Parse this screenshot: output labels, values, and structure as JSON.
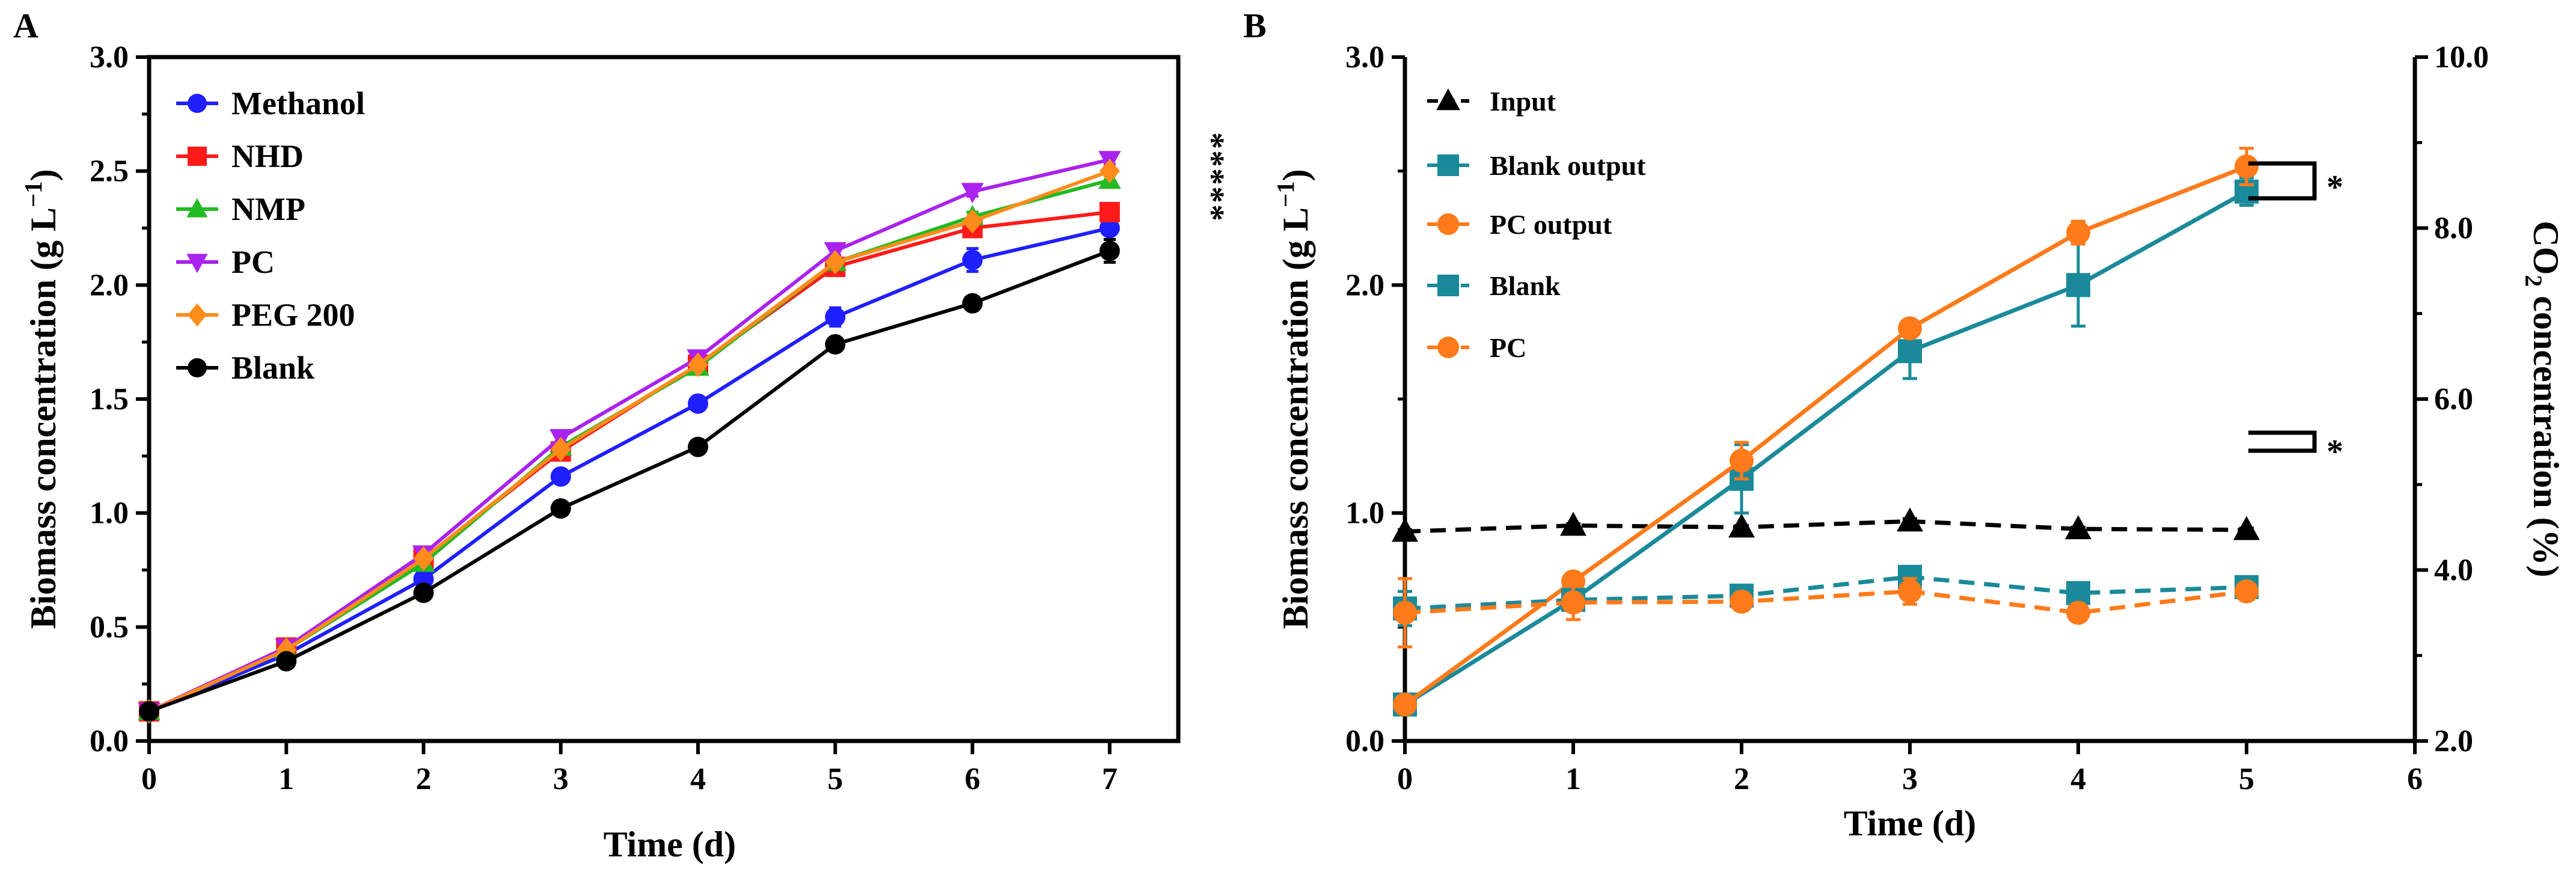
{
  "chart_data": [
    {
      "panel_label": "A",
      "type": "line",
      "xlabel": "Time (d)",
      "ylabel": {
        "main": "Biomass concentration (g L",
        "sup": "−1",
        "close": ")"
      },
      "xlim": [
        0,
        7.5
      ],
      "ylim": [
        0,
        3.0
      ],
      "xticks": [
        "0",
        "1",
        "2",
        "3",
        "4",
        "5",
        "6",
        "7"
      ],
      "yticks": [
        "0.0",
        "0.5",
        "1.0",
        "1.5",
        "2.0",
        "2.5",
        "3.0"
      ],
      "x": [
        0,
        1,
        2,
        3,
        4,
        5,
        6,
        7
      ],
      "legend_position": "top-left",
      "significance": "*****",
      "series": [
        {
          "name": "Methanol",
          "color": "#1f1fff",
          "marker": "circle",
          "values": [
            0.13,
            0.38,
            0.71,
            1.16,
            1.48,
            1.86,
            2.11,
            2.25
          ],
          "errors": [
            0.01,
            0.01,
            0.02,
            0.02,
            0.02,
            0.04,
            0.05,
            0.03
          ]
        },
        {
          "name": "NHD",
          "color": "#ff1a1a",
          "marker": "square",
          "values": [
            0.13,
            0.41,
            0.8,
            1.27,
            1.65,
            2.08,
            2.25,
            2.32
          ],
          "errors": [
            0.01,
            0.01,
            0.02,
            0.02,
            0.02,
            0.02,
            0.03,
            0.02
          ]
        },
        {
          "name": "NMP",
          "color": "#22bb22",
          "marker": "triangle-up",
          "values": [
            0.13,
            0.4,
            0.78,
            1.29,
            1.64,
            2.1,
            2.3,
            2.46
          ],
          "errors": [
            0.01,
            0.01,
            0.02,
            0.02,
            0.02,
            0.02,
            0.02,
            0.02
          ]
        },
        {
          "name": "PC",
          "color": "#aa22ee",
          "marker": "triangle-down",
          "values": [
            0.13,
            0.41,
            0.82,
            1.33,
            1.68,
            2.15,
            2.41,
            2.55
          ],
          "errors": [
            0.01,
            0.01,
            0.02,
            0.02,
            0.02,
            0.02,
            0.02,
            0.02
          ]
        },
        {
          "name": "PEG 200",
          "color": "#ff8c1a",
          "marker": "diamond",
          "values": [
            0.13,
            0.4,
            0.8,
            1.28,
            1.65,
            2.1,
            2.28,
            2.5
          ],
          "errors": [
            0.01,
            0.01,
            0.02,
            0.02,
            0.02,
            0.02,
            0.02,
            0.02
          ]
        },
        {
          "name": "Blank",
          "color": "#000000",
          "marker": "circle",
          "values": [
            0.13,
            0.35,
            0.65,
            1.02,
            1.29,
            1.74,
            1.92,
            2.15
          ],
          "errors": [
            0.01,
            0.01,
            0.02,
            0.02,
            0.02,
            0.02,
            0.02,
            0.05
          ]
        }
      ]
    },
    {
      "panel_label": "B",
      "type": "line",
      "xlabel": "Time (d)",
      "ylabel": {
        "main": "Biomass concentration (g L",
        "sup": "−1",
        "close": ")"
      },
      "y2label": {
        "pre": "CO",
        "sub": "2",
        "post": " concentration (%)"
      },
      "xlim": [
        0,
        6
      ],
      "ylim": [
        0,
        3.0
      ],
      "y2lim": [
        2.0,
        10.0
      ],
      "xticks": [
        "0",
        "1",
        "2",
        "3",
        "4",
        "5",
        "6"
      ],
      "yticks": [
        "0.0",
        "1.0",
        "2.0",
        "3.0"
      ],
      "y2ticks": [
        "2.0",
        "4.0",
        "6.0",
        "8.0",
        "10.0"
      ],
      "x": [
        0,
        1,
        2,
        3,
        4,
        5
      ],
      "legend_position": "top-left",
      "significance": [
        "*",
        "*"
      ],
      "series": [
        {
          "name": "Input",
          "color": "#000000",
          "marker": "triangle-up",
          "axis": "right",
          "dashed": true,
          "values": [
            4.45,
            4.52,
            4.5,
            4.57,
            4.48,
            4.47
          ],
          "errors": [
            0.02,
            0.02,
            0.02,
            0.03,
            0.02,
            0.02
          ]
        },
        {
          "name": "Blank output",
          "color": "#1a8a9a",
          "marker": "square",
          "axis": "left",
          "dashed": false,
          "values": [
            0.16,
            0.62,
            1.15,
            1.71,
            2.0,
            2.41
          ],
          "errors": [
            0.02,
            0.02,
            0.15,
            0.12,
            0.18,
            0.06
          ]
        },
        {
          "name": "PC output",
          "color": "#ff7a1a",
          "marker": "circle",
          "axis": "left",
          "dashed": false,
          "values": [
            0.16,
            0.7,
            1.23,
            1.81,
            2.23,
            2.52
          ],
          "errors": [
            0.02,
            0.02,
            0.08,
            0.02,
            0.05,
            0.08
          ]
        },
        {
          "name": "Blank",
          "color": "#1a8a9a",
          "marker": "square",
          "axis": "right",
          "dashed": true,
          "values": [
            3.55,
            3.65,
            3.7,
            3.92,
            3.73,
            3.8
          ],
          "errors": [
            0.2,
            0.05,
            0.05,
            0.05,
            0.05,
            0.03
          ]
        },
        {
          "name": "PC",
          "color": "#ff7a1a",
          "marker": "circle",
          "axis": "right",
          "dashed": true,
          "values": [
            3.5,
            3.62,
            3.63,
            3.75,
            3.5,
            3.75
          ],
          "errors": [
            0.4,
            0.2,
            0.1,
            0.15,
            0.1,
            0.05
          ]
        }
      ]
    }
  ]
}
